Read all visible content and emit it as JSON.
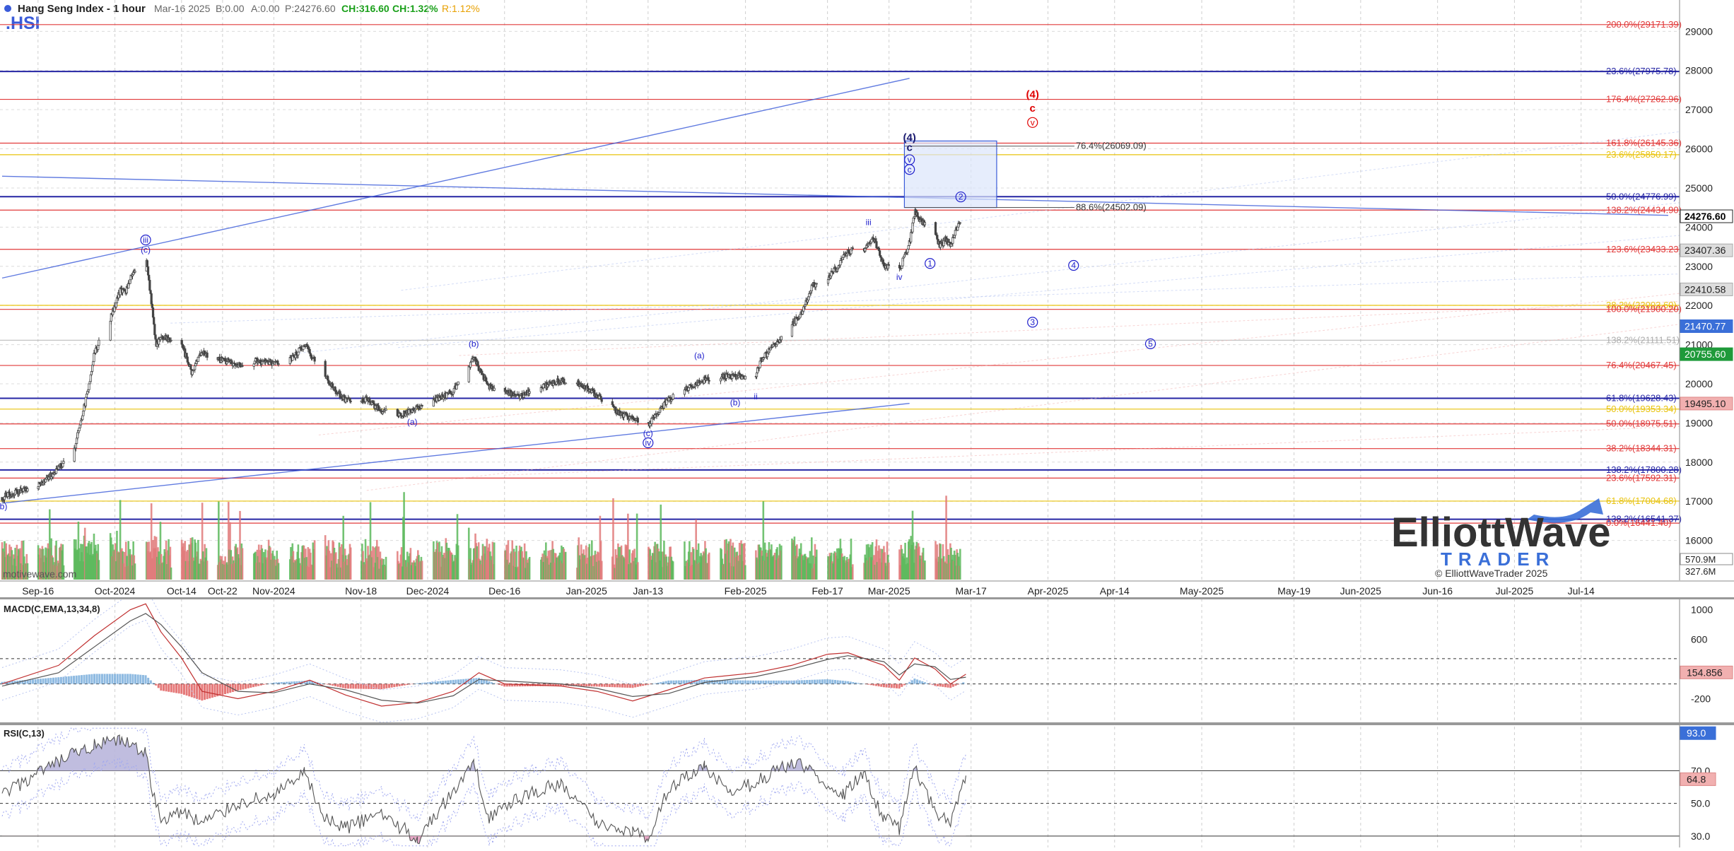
{
  "header": {
    "title": "Hang Seng Index - 1 hour",
    "symbol": ".HSI",
    "date": "Mar-16 2025",
    "bid": "B:0.00",
    "ask": "A:0.00",
    "price": "P:24276.60",
    "change": "CH:316.60",
    "change_pct": "CH:1.32%",
    "range_pct": "R:1.12%"
  },
  "watermark": "motivewave.com",
  "logo": {
    "line1": "ElliottWave",
    "line2": "TRADER",
    "copyright": "© ElliottWaveTrader 2025"
  },
  "colors": {
    "candle": "#444444",
    "fib_red": "#e03030",
    "fib_blue": "#1a1aa0",
    "fib_yellow": "#e8c000",
    "label_blue": "#2020cc",
    "label_red": "#e00000",
    "vol_green": "#5cb85c",
    "vol_red": "#e07a7a",
    "macd_hist_blue": "#7aaedc",
    "macd_hist_red": "#e06060",
    "rsi_line": "#555555"
  },
  "chart_data": [
    {
      "id": "price",
      "type": "candlestick",
      "title": "Hang Seng Index - 1 hour",
      "ylim": [
        15000,
        29800
      ],
      "y_ticks": [
        16000,
        17000,
        18000,
        19000,
        20000,
        21000,
        22000,
        23000,
        24000,
        25000,
        26000,
        27000,
        28000,
        29000
      ],
      "x_labels": [
        "Sep-16",
        "Oct-2024",
        "Oct-14",
        "Oct-22",
        "Nov-2024",
        "Nov-18",
        "Dec-2024",
        "Dec-16",
        "Jan-2025",
        "Jan-13",
        "Feb-2025",
        "Feb-17",
        "Mar-2025",
        "Mar-17",
        "Apr-2025",
        "Apr-14",
        "May-2025",
        "May-19",
        "Jun-2025",
        "Jun-16",
        "Jul-2025",
        "Jul-14"
      ],
      "close_path": [
        [
          "Sep-09",
          17100
        ],
        [
          "Sep-12",
          17250
        ],
        [
          "Sep-16",
          17400
        ],
        [
          "Sep-19",
          17700
        ],
        [
          "Sep-23",
          18300
        ],
        [
          "Sep-25",
          19400
        ],
        [
          "Sep-26",
          20000
        ],
        [
          "Sep-27",
          20800
        ],
        [
          "Sep-30",
          21600
        ],
        [
          "Oct-02",
          22400
        ],
        [
          "Oct-03",
          22300
        ],
        [
          "Oct-04",
          22700
        ],
        [
          "Oct-07",
          23300
        ],
        [
          "Oct-08",
          22200
        ],
        [
          "Oct-09",
          21000
        ],
        [
          "Oct-10",
          21200
        ],
        [
          "Oct-14",
          21000
        ],
        [
          "Oct-16",
          20300
        ],
        [
          "Oct-18",
          20800
        ],
        [
          "Oct-22",
          20600
        ],
        [
          "Oct-25",
          20500
        ],
        [
          "Oct-29",
          20600
        ],
        [
          "Nov-01",
          20500
        ],
        [
          "Nov-05",
          20700
        ],
        [
          "Nov-07",
          21000
        ],
        [
          "Nov-08",
          20800
        ],
        [
          "Nov-11",
          20200
        ],
        [
          "Nov-13",
          19800
        ],
        [
          "Nov-15",
          19600
        ],
        [
          "Nov-19",
          19600
        ],
        [
          "Nov-22",
          19300
        ],
        [
          "Nov-26",
          19200
        ],
        [
          "Nov-29",
          19400
        ],
        [
          "Dec-03",
          19600
        ],
        [
          "Dec-06",
          19800
        ],
        [
          "Dec-09",
          20400
        ],
        [
          "Dec-10",
          20700
        ],
        [
          "Dec-11",
          20400
        ],
        [
          "Dec-13",
          19900
        ],
        [
          "Dec-16",
          19800
        ],
        [
          "Dec-19",
          19700
        ],
        [
          "Dec-23",
          19900
        ],
        [
          "Dec-27",
          20100
        ],
        [
          "Dec-31",
          20000
        ],
        [
          "Jan-03",
          19700
        ],
        [
          "Jan-07",
          19300
        ],
        [
          "Jan-10",
          19100
        ],
        [
          "Jan-13",
          18950
        ],
        [
          "Jan-15",
          19300
        ],
        [
          "Jan-17",
          19600
        ],
        [
          "Jan-21",
          19900
        ],
        [
          "Jan-24",
          20100
        ],
        [
          "Jan-27",
          20200
        ],
        [
          "Feb-03",
          20200
        ],
        [
          "Feb-04",
          20600
        ],
        [
          "Feb-06",
          20900
        ],
        [
          "Feb-10",
          21500
        ],
        [
          "Feb-12",
          21800
        ],
        [
          "Feb-14",
          22500
        ],
        [
          "Feb-17",
          22700
        ],
        [
          "Feb-19",
          23000
        ],
        [
          "Feb-21",
          23400
        ],
        [
          "Feb-24",
          23400
        ],
        [
          "Feb-26",
          23700
        ],
        [
          "Feb-28",
          23000
        ],
        [
          "Mar-03",
          22900
        ],
        [
          "Mar-05",
          23600
        ],
        [
          "Mar-06",
          24400
        ],
        [
          "Mar-07",
          24200
        ],
        [
          "Mar-10",
          23800
        ],
        [
          "Mar-11",
          23500
        ],
        [
          "Mar-12",
          23700
        ],
        [
          "Mar-13",
          23500
        ],
        [
          "Mar-14",
          23960
        ],
        [
          "Mar-16",
          24276.6
        ]
      ],
      "price_tags": [
        {
          "value": 24276.6,
          "text": "24276.60",
          "style": "current"
        },
        {
          "value": 23407.36,
          "text": "23407.36",
          "style": "grey"
        },
        {
          "value": 22410.58,
          "text": "22410.58",
          "style": "grey"
        },
        {
          "value": 21470.77,
          "text": "21470.77",
          "style": "blue"
        },
        {
          "value": 20755.6,
          "text": "20755.60",
          "style": "green"
        },
        {
          "value": 19495.1,
          "text": "19495.10",
          "style": "red"
        }
      ],
      "fib_levels": [
        {
          "value": 29171.39,
          "text": "200.0%(29171.39)",
          "color": "red"
        },
        {
          "value": 27975.78,
          "text": "23.6%(27975.78)",
          "color": "blue"
        },
        {
          "value": 27262.96,
          "text": "176.4%(27262.96)",
          "color": "red"
        },
        {
          "value": 26145.36,
          "text": "161.8%(26145.36)",
          "color": "red"
        },
        {
          "value": 25850.17,
          "text": "23.6%(25850.17)",
          "color": "yellow"
        },
        {
          "value": 24776.99,
          "text": "50.0%(24776.99)",
          "color": "blue"
        },
        {
          "value": 24434.9,
          "text": "138.2%(24434.90)",
          "color": "red"
        },
        {
          "value": 23433.23,
          "text": "123.6%(23433.23)",
          "color": "red"
        },
        {
          "value": 22003.6,
          "text": "38.2%(22003.60)",
          "color": "yellow"
        },
        {
          "value": 21900.2,
          "text": "100.0%(21900.20)",
          "color": "red"
        },
        {
          "value": 21111.51,
          "text": "138.2%(21111.51)",
          "color": "grey"
        },
        {
          "value": 20467.45,
          "text": "76.4%(20467.45)",
          "color": "red"
        },
        {
          "value": 19628.43,
          "text": "61.8%(19628.43)",
          "color": "blue"
        },
        {
          "value": 19353.34,
          "text": "50.0%(19353.34)",
          "color": "yellow"
        },
        {
          "value": 18975.51,
          "text": "50.0%(18975.51)",
          "color": "red"
        },
        {
          "value": 18344.31,
          "text": "38.2%(18344.31)",
          "color": "red"
        },
        {
          "value": 17800.28,
          "text": "138.2%(17800.28)",
          "color": "blue"
        },
        {
          "value": 17592.31,
          "text": "23.6%(17592.31)",
          "color": "red"
        },
        {
          "value": 17004.68,
          "text": "61.8%(17004.68)",
          "color": "yellow"
        },
        {
          "value": 16541.37,
          "text": "138.2%(16541.37)",
          "color": "blue"
        },
        {
          "value": 16441.4,
          "text": "0.0%(16441.40)",
          "color": "red"
        }
      ],
      "mid_fibs": [
        {
          "value": 26069.09,
          "text": "76.4%(26069.09)"
        },
        {
          "value": 24502.09,
          "text": "88.6%(24502.09)"
        }
      ],
      "target_box": {
        "x0": "Mar-04",
        "x1": "Mar-22",
        "y0": 24500,
        "y1": 26200
      },
      "trend_lines": [
        {
          "x0": "Sep-09",
          "y0": 22700,
          "x1": "Mar-05",
          "y1": 27800
        },
        {
          "x0": "Sep-09",
          "y0": 16950,
          "x1": "Mar-05",
          "y1": 19500
        },
        {
          "x0": "Sep-09",
          "y0": 25300,
          "x1": "Jul-31",
          "y1": 24300
        }
      ],
      "wave_labels": [
        {
          "text": "(b)",
          "x": "Sep-09",
          "y": 16800,
          "color": "blue"
        },
        {
          "text": "iii",
          "x": "Oct-07",
          "y": 23600,
          "color": "blue",
          "circle": true
        },
        {
          "text": "(c)",
          "x": "Oct-07",
          "y": 23350,
          "color": "blue"
        },
        {
          "text": "(a)",
          "x": "Nov-28",
          "y": 18950,
          "color": "blue"
        },
        {
          "text": "(b)",
          "x": "Dec-10",
          "y": 20950,
          "color": "blue"
        },
        {
          "text": "(c)",
          "x": "Jan-13",
          "y": 18660,
          "color": "blue"
        },
        {
          "text": "iv",
          "x": "Jan-13",
          "y": 18420,
          "color": "blue",
          "circle": true
        },
        {
          "text": "(a)",
          "x": "Jan-23",
          "y": 20650,
          "color": "blue"
        },
        {
          "text": "(b)",
          "x": "Jan-30",
          "y": 19450,
          "color": "blue"
        },
        {
          "text": "ii",
          "x": "Feb-03",
          "y": 19600,
          "color": "blue"
        },
        {
          "text": "iii",
          "x": "Feb-25",
          "y": 24050,
          "color": "blue"
        },
        {
          "text": "iv",
          "x": "Mar-03",
          "y": 22650,
          "color": "blue"
        },
        {
          "text": "(4)",
          "x": "Mar-05",
          "y": 26200,
          "color": "navy",
          "bold": true
        },
        {
          "text": "c",
          "x": "Mar-05",
          "y": 25950,
          "color": "navy",
          "bold": true
        },
        {
          "text": "v",
          "x": "Mar-05",
          "y": 25650,
          "color": "blue",
          "circle": true
        },
        {
          "text": "c",
          "x": "Mar-05",
          "y": 25400,
          "color": "blue",
          "circle": true
        },
        {
          "text": "1",
          "x": "Mar-09",
          "y": 23000,
          "color": "blue",
          "circle": true
        },
        {
          "text": "2",
          "x": "Mar-15",
          "y": 24700,
          "color": "blue",
          "circle": true
        },
        {
          "text": "3",
          "x": "Mar-29",
          "y": 21500,
          "color": "blue",
          "circle": true
        },
        {
          "text": "4",
          "x": "Apr-06",
          "y": 22950,
          "color": "blue",
          "circle": true
        },
        {
          "text": "5",
          "x": "Apr-21",
          "y": 20950,
          "color": "blue",
          "circle": true
        },
        {
          "text": "(4)",
          "x": "Mar-29",
          "y": 27300,
          "color": "red",
          "bold": true
        },
        {
          "text": "c",
          "x": "Mar-29",
          "y": 26950,
          "color": "red",
          "bold": true
        },
        {
          "text": "v",
          "x": "Mar-29",
          "y": 26600,
          "color": "red",
          "circle": true
        }
      ]
    },
    {
      "id": "macd",
      "type": "line",
      "title": "MACD(C,EMA,13,34,8)",
      "ylim": [
        -500,
        1150
      ],
      "y_ticks": [
        1000,
        600,
        -200
      ],
      "dashed_levels": [
        340,
        0
      ],
      "current_tag": {
        "value": 154.856,
        "text": "154.856"
      },
      "macd_path": [
        [
          "Sep-09",
          0
        ],
        [
          "Sep-20",
          250
        ],
        [
          "Sep-27",
          650
        ],
        [
          "Oct-04",
          1000
        ],
        [
          "Oct-07",
          1080
        ],
        [
          "Oct-10",
          700
        ],
        [
          "Oct-14",
          350
        ],
        [
          "Oct-18",
          -100
        ],
        [
          "Oct-25",
          -200
        ],
        [
          "Nov-01",
          -100
        ],
        [
          "Nov-08",
          50
        ],
        [
          "Nov-15",
          -150
        ],
        [
          "Nov-22",
          -300
        ],
        [
          "Nov-29",
          -250
        ],
        [
          "Dec-06",
          -100
        ],
        [
          "Dec-11",
          150
        ],
        [
          "Dec-16",
          0
        ],
        [
          "Dec-27",
          -30
        ],
        [
          "Jan-03",
          -100
        ],
        [
          "Jan-10",
          -230
        ],
        [
          "Jan-17",
          -80
        ],
        [
          "Jan-24",
          80
        ],
        [
          "Feb-03",
          150
        ],
        [
          "Feb-10",
          250
        ],
        [
          "Feb-17",
          400
        ],
        [
          "Feb-21",
          420
        ],
        [
          "Feb-28",
          250
        ],
        [
          "Mar-03",
          50
        ],
        [
          "Mar-06",
          350
        ],
        [
          "Mar-10",
          200
        ],
        [
          "Mar-13",
          0
        ],
        [
          "Mar-16",
          130
        ]
      ],
      "signal_path": [
        [
          "Sep-09",
          -30
        ],
        [
          "Sep-20",
          150
        ],
        [
          "Sep-27",
          500
        ],
        [
          "Oct-04",
          850
        ],
        [
          "Oct-07",
          950
        ],
        [
          "Oct-10",
          800
        ],
        [
          "Oct-14",
          500
        ],
        [
          "Oct-18",
          150
        ],
        [
          "Oct-25",
          -100
        ],
        [
          "Nov-01",
          -120
        ],
        [
          "Nov-08",
          0
        ],
        [
          "Nov-15",
          -80
        ],
        [
          "Nov-22",
          -220
        ],
        [
          "Nov-29",
          -260
        ],
        [
          "Dec-06",
          -160
        ],
        [
          "Dec-11",
          60
        ],
        [
          "Dec-16",
          40
        ],
        [
          "Dec-27",
          0
        ],
        [
          "Jan-03",
          -60
        ],
        [
          "Jan-10",
          -170
        ],
        [
          "Jan-17",
          -130
        ],
        [
          "Jan-24",
          20
        ],
        [
          "Feb-03",
          100
        ],
        [
          "Feb-10",
          200
        ],
        [
          "Feb-17",
          330
        ],
        [
          "Feb-21",
          380
        ],
        [
          "Feb-28",
          300
        ],
        [
          "Mar-03",
          120
        ],
        [
          "Mar-06",
          270
        ],
        [
          "Mar-10",
          230
        ],
        [
          "Mar-13",
          60
        ],
        [
          "Mar-16",
          90
        ]
      ]
    },
    {
      "id": "rsi",
      "type": "line",
      "title": "RSI(C,13)",
      "ylim": [
        23,
        97
      ],
      "y_ticks": [
        70.0,
        50.0,
        30.0
      ],
      "dashed_levels": [
        50
      ],
      "solid_levels": [
        70,
        30
      ],
      "tags": [
        {
          "value": 93.0,
          "text": "93.0",
          "style": "blue"
        },
        {
          "value": 64.8,
          "text": "64.8",
          "style": "red"
        }
      ],
      "rsi_path": [
        [
          "Sep-09",
          55
        ],
        [
          "Sep-16",
          68
        ],
        [
          "Sep-23",
          80
        ],
        [
          "Sep-27",
          85
        ],
        [
          "Oct-02",
          88
        ],
        [
          "Oct-07",
          82
        ],
        [
          "Oct-08",
          60
        ],
        [
          "Oct-10",
          40
        ],
        [
          "Oct-14",
          45
        ],
        [
          "Oct-18",
          38
        ],
        [
          "Oct-25",
          50
        ],
        [
          "Nov-01",
          55
        ],
        [
          "Nov-07",
          68
        ],
        [
          "Nov-11",
          40
        ],
        [
          "Nov-15",
          35
        ],
        [
          "Nov-22",
          44
        ],
        [
          "Nov-29",
          28
        ],
        [
          "Dec-03",
          45
        ],
        [
          "Dec-10",
          74
        ],
        [
          "Dec-13",
          42
        ],
        [
          "Dec-20",
          55
        ],
        [
          "Dec-27",
          62
        ],
        [
          "Jan-03",
          38
        ],
        [
          "Jan-10",
          33
        ],
        [
          "Jan-13",
          28
        ],
        [
          "Jan-17",
          60
        ],
        [
          "Jan-24",
          72
        ],
        [
          "Jan-29",
          55
        ],
        [
          "Feb-04",
          65
        ],
        [
          "Feb-10",
          75
        ],
        [
          "Feb-14",
          70
        ],
        [
          "Feb-20",
          55
        ],
        [
          "Feb-24",
          68
        ],
        [
          "Feb-28",
          40
        ],
        [
          "Mar-03",
          35
        ],
        [
          "Mar-06",
          72
        ],
        [
          "Mar-10",
          45
        ],
        [
          "Mar-13",
          40
        ],
        [
          "Mar-16",
          67
        ]
      ]
    }
  ]
}
